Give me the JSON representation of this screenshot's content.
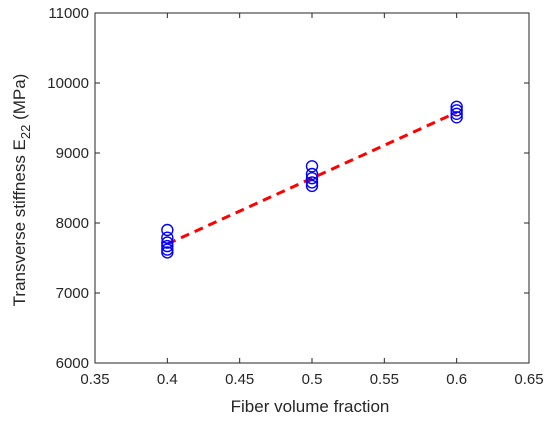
{
  "chart_data": {
    "type": "scatter",
    "xlabel": "Fiber volume fraction",
    "ylabel": {
      "main": "Transverse stiffness E",
      "subscript": "22",
      "unit": " (MPa)"
    },
    "xlim": [
      0.35,
      0.65
    ],
    "ylim": [
      6000,
      11000
    ],
    "xticks": [
      0.35,
      0.4,
      0.45,
      0.5,
      0.55,
      0.6,
      0.65
    ],
    "xtick_labels": [
      "0.35",
      "0.4",
      "0.45",
      "0.5",
      "0.55",
      "0.6",
      "0.65"
    ],
    "yticks": [
      6000,
      7000,
      8000,
      9000,
      10000,
      11000
    ],
    "ytick_labels": [
      "6000",
      "7000",
      "8000",
      "9000",
      "10000",
      "11000"
    ],
    "grid": false,
    "series": [
      {
        "kind": "markers",
        "marker": "circle-open",
        "color": "#0000ff",
        "points": [
          [
            0.4,
            7580
          ],
          [
            0.4,
            7620
          ],
          [
            0.4,
            7670
          ],
          [
            0.4,
            7720
          ],
          [
            0.4,
            7790
          ],
          [
            0.4,
            7900
          ],
          [
            0.5,
            8530
          ],
          [
            0.5,
            8580
          ],
          [
            0.5,
            8640
          ],
          [
            0.5,
            8700
          ],
          [
            0.5,
            8810
          ],
          [
            0.6,
            9510
          ],
          [
            0.6,
            9560
          ],
          [
            0.6,
            9610
          ],
          [
            0.6,
            9660
          ]
        ]
      },
      {
        "kind": "line",
        "style": "dashed",
        "color": "#ff0000",
        "points": [
          [
            0.4,
            7700
          ],
          [
            0.6,
            9580
          ]
        ]
      }
    ]
  }
}
